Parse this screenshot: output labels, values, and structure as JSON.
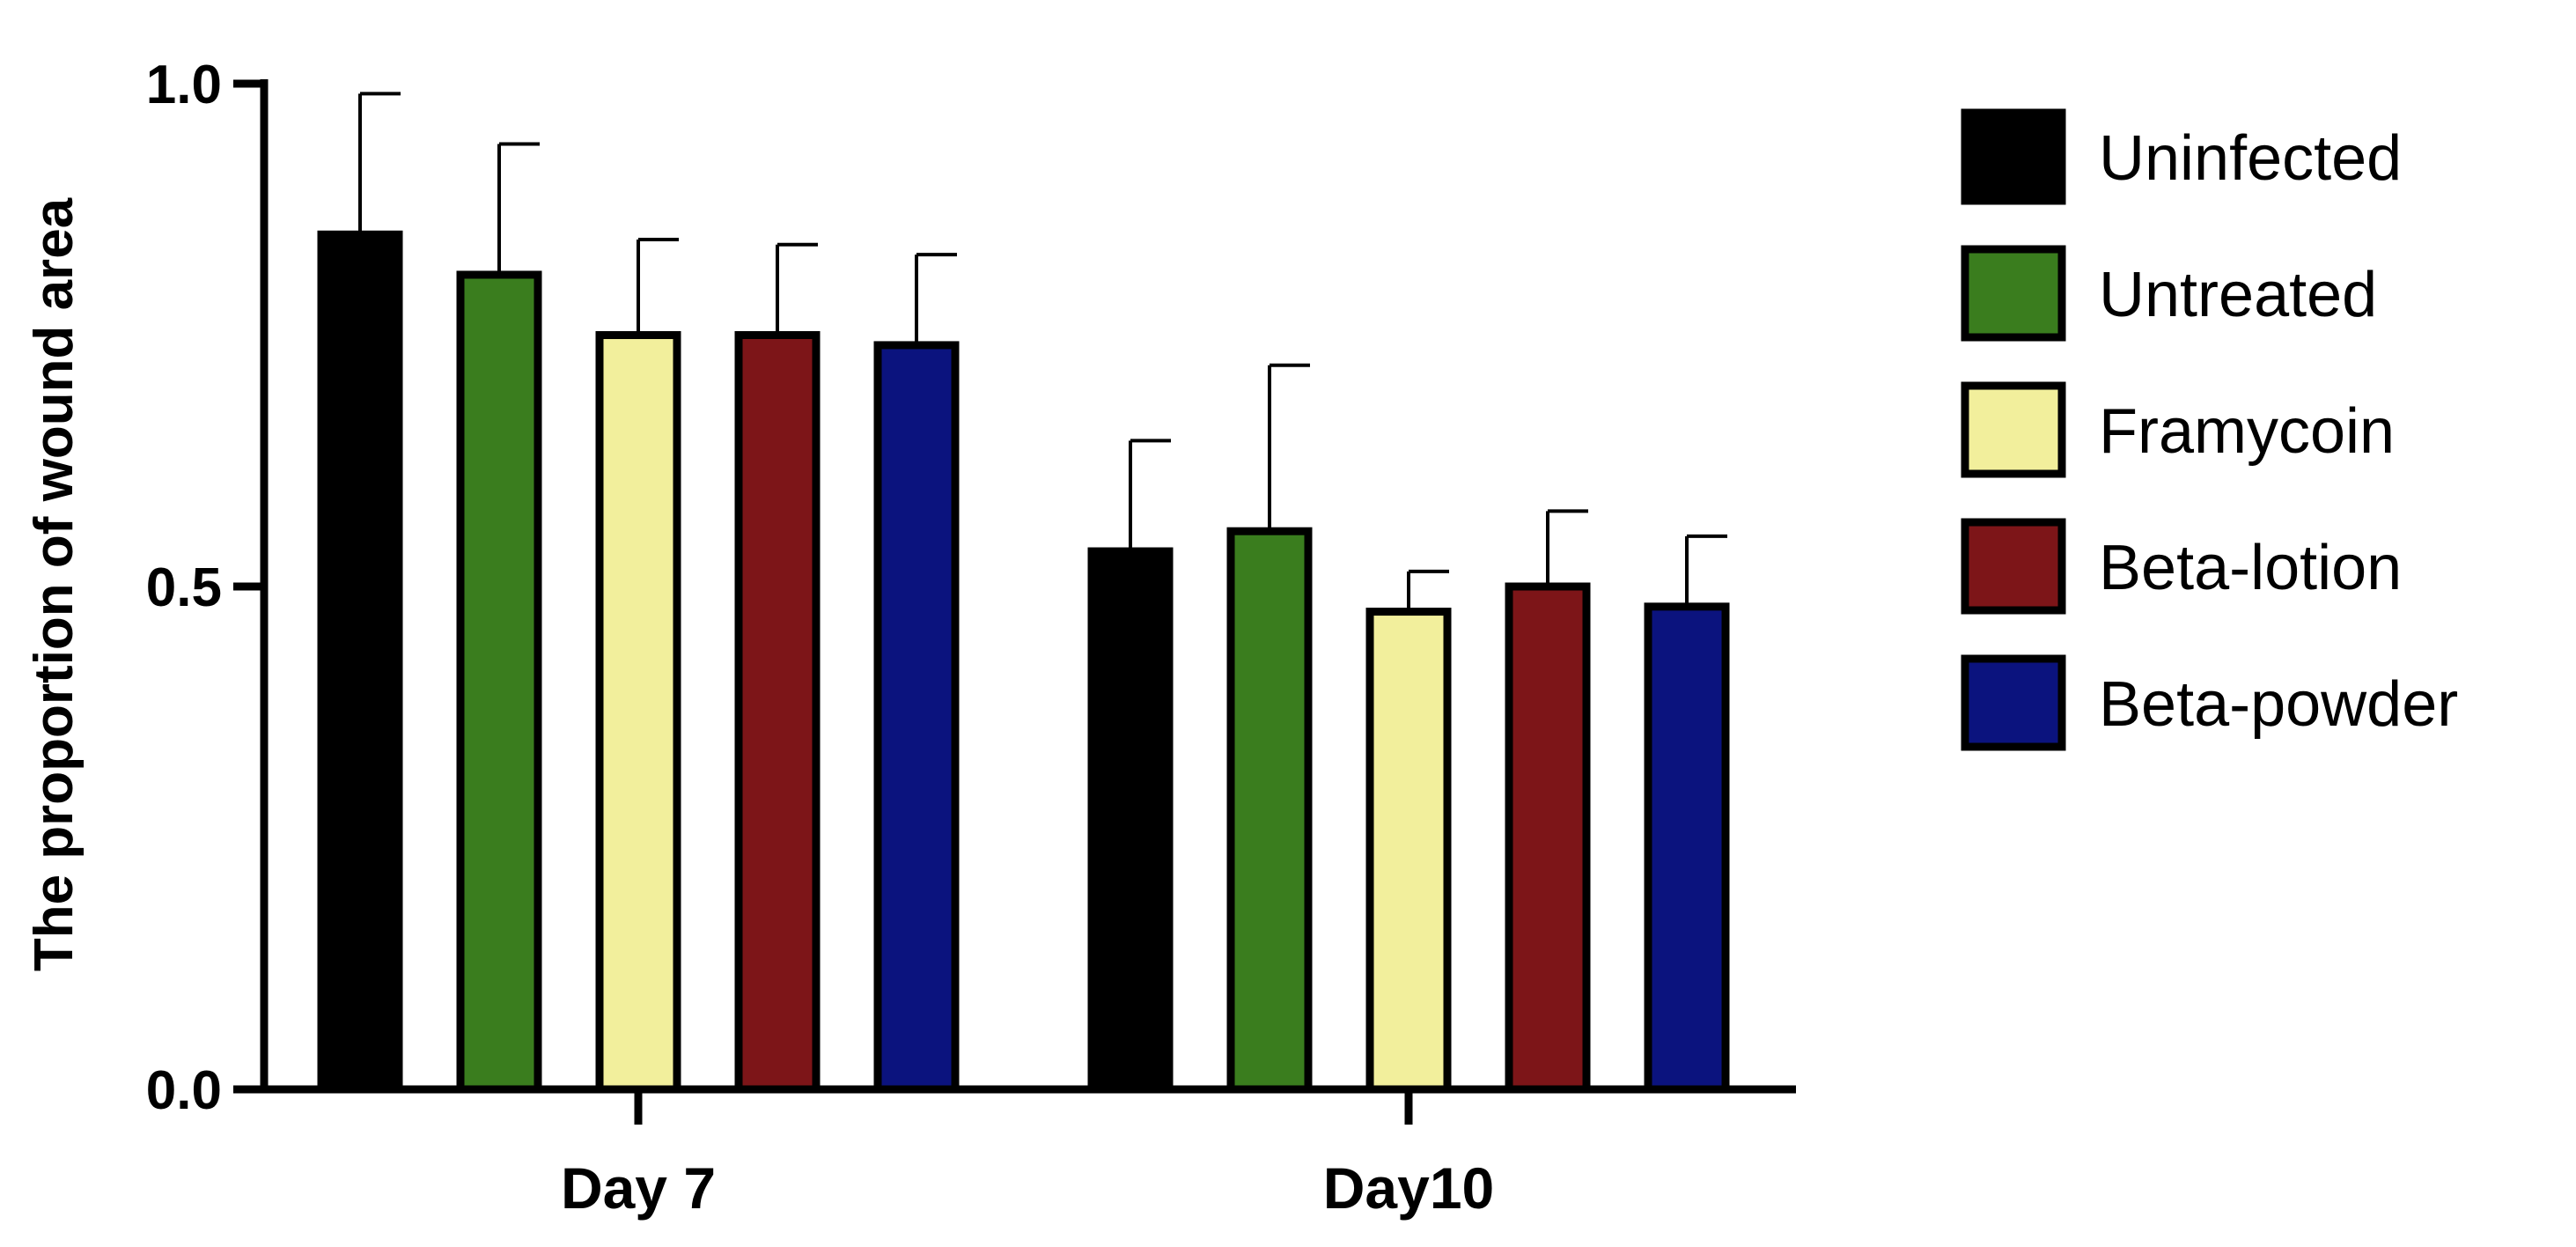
{
  "chart_data": {
    "type": "bar",
    "title": "",
    "xlabel": "",
    "ylabel": "The proportion of wound area",
    "ylim": [
      0,
      1.0
    ],
    "yticks": [
      0.0,
      0.5,
      1.0
    ],
    "ytick_labels": [
      "0.0",
      "0.5",
      "1.0"
    ],
    "categories": [
      "Day 7",
      "Day10"
    ],
    "series": [
      {
        "name": "Uninfected",
        "color": "#000000",
        "values": [
          0.85,
          0.535
        ],
        "errors": [
          0.14,
          0.11
        ]
      },
      {
        "name": "Untreated",
        "color": "#3a7d1e",
        "values": [
          0.81,
          0.555
        ],
        "errors": [
          0.13,
          0.165
        ]
      },
      {
        "name": "Framycoin",
        "color": "#f2ef9c",
        "values": [
          0.75,
          0.475
        ],
        "errors": [
          0.095,
          0.04
        ]
      },
      {
        "name": "Beta-lotion",
        "color": "#7d1518",
        "values": [
          0.75,
          0.5
        ],
        "errors": [
          0.09,
          0.075
        ]
      },
      {
        "name": "Beta-powder",
        "color": "#0b137e",
        "values": [
          0.74,
          0.48
        ],
        "errors": [
          0.09,
          0.07
        ]
      }
    ],
    "legend_position": "right",
    "grid": false
  }
}
